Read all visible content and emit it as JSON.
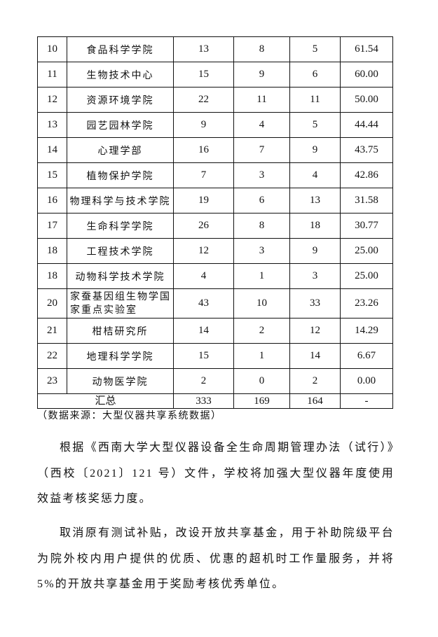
{
  "table": {
    "rows": [
      {
        "rank": "10",
        "unit": "食品科学学院",
        "total": "13",
        "a": "8",
        "b": "5",
        "rate": "61.54"
      },
      {
        "rank": "11",
        "unit": "生物技术中心",
        "total": "15",
        "a": "9",
        "b": "6",
        "rate": "60.00"
      },
      {
        "rank": "12",
        "unit": "资源环境学院",
        "total": "22",
        "a": "11",
        "b": "11",
        "rate": "50.00"
      },
      {
        "rank": "13",
        "unit": "园艺园林学院",
        "total": "9",
        "a": "4",
        "b": "5",
        "rate": "44.44"
      },
      {
        "rank": "14",
        "unit": "心理学部",
        "total": "16",
        "a": "7",
        "b": "9",
        "rate": "43.75"
      },
      {
        "rank": "15",
        "unit": "植物保护学院",
        "total": "7",
        "a": "3",
        "b": "4",
        "rate": "42.86"
      },
      {
        "rank": "16",
        "unit": "物理科学与技术学院",
        "total": "19",
        "a": "6",
        "b": "13",
        "rate": "31.58"
      },
      {
        "rank": "17",
        "unit": "生命科学学院",
        "total": "26",
        "a": "8",
        "b": "18",
        "rate": "30.77"
      },
      {
        "rank": "18",
        "unit": "工程技术学院",
        "total": "12",
        "a": "3",
        "b": "9",
        "rate": "25.00"
      },
      {
        "rank": "18",
        "unit": "动物科学技术学院",
        "total": "4",
        "a": "1",
        "b": "3",
        "rate": "25.00"
      },
      {
        "rank": "20",
        "unit": "家蚕基因组生物学国家重点实验室",
        "total": "43",
        "a": "10",
        "b": "33",
        "rate": "23.26"
      },
      {
        "rank": "21",
        "unit": "柑桔研究所",
        "total": "14",
        "a": "2",
        "b": "12",
        "rate": "14.29"
      },
      {
        "rank": "22",
        "unit": "地理科学学院",
        "total": "15",
        "a": "1",
        "b": "14",
        "rate": "6.67"
      },
      {
        "rank": "23",
        "unit": "动物医学院",
        "total": "2",
        "a": "0",
        "b": "2",
        "rate": "0.00"
      }
    ],
    "summary": {
      "label": "汇总",
      "total": "333",
      "a": "169",
      "b": "164",
      "rate": "-"
    }
  },
  "source_note": "（数据来源：大型仪器共享系统数据）",
  "paragraphs": [
    "根据《西南大学大型仪器设备全生命周期管理办法（试行）》（西校〔2021〕121 号）文件，学校将加强大型仪器年度使用效益考核奖惩力度。",
    "取消原有测试补贴，改设开放共享基金，用于补助院级平台为院外校内用户提供的优质、优惠的超机时工作量服务，并将 5%的开放共享基金用于奖励考核优秀单位。"
  ]
}
